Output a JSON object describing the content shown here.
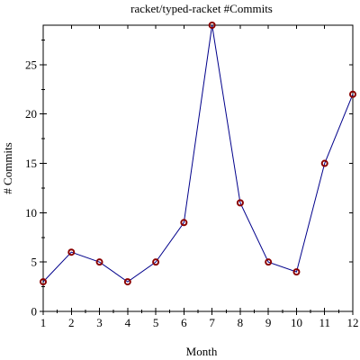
{
  "chart_data": {
    "type": "line",
    "title": "racket/typed-racket #Commits",
    "xlabel": "Month",
    "ylabel": "# Commits",
    "x": [
      1,
      2,
      3,
      4,
      5,
      6,
      7,
      8,
      9,
      10,
      11,
      12
    ],
    "series": [
      {
        "values": [
          3,
          6,
          5,
          3,
          5,
          9,
          29,
          11,
          5,
          4,
          15,
          22
        ]
      }
    ],
    "xlim": [
      1,
      12
    ],
    "ylim": [
      0,
      29
    ],
    "x_ticks": [
      1,
      2,
      3,
      4,
      5,
      6,
      7,
      8,
      9,
      10,
      11,
      12
    ],
    "y_ticks": [
      0,
      5,
      10,
      15,
      20,
      25
    ],
    "grid": false,
    "colors": {
      "line": "#00008b",
      "marker": "#8b0000"
    }
  }
}
